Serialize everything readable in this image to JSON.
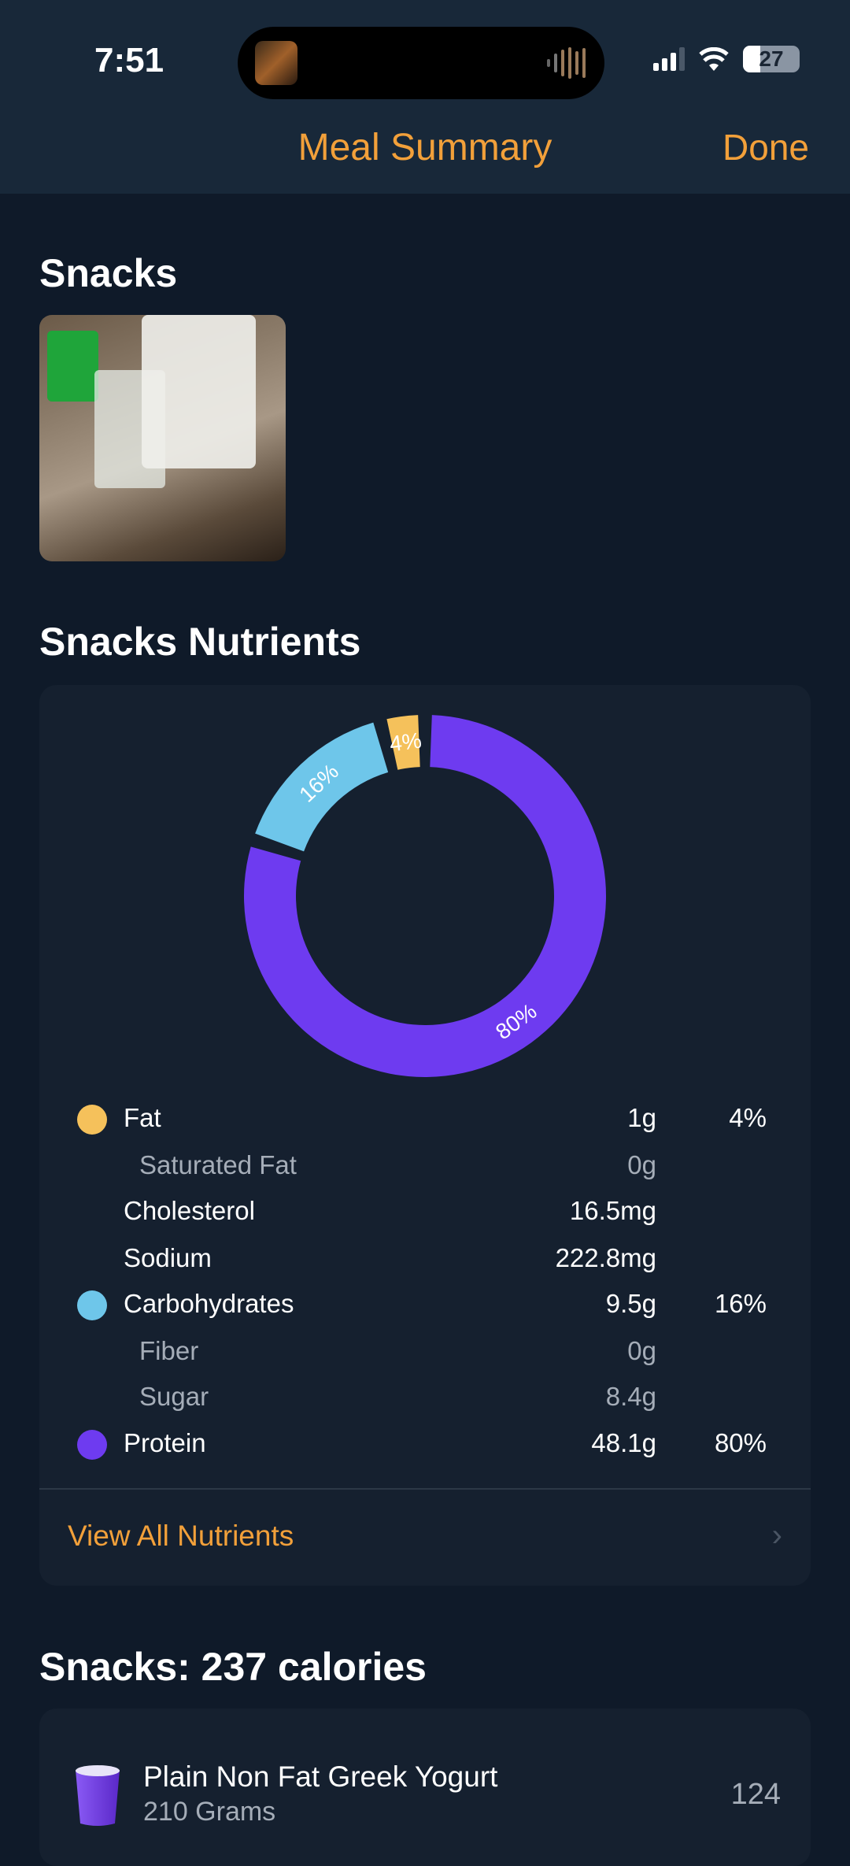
{
  "status_bar": {
    "time": "7:51",
    "battery": "27"
  },
  "nav": {
    "title": "Meal Summary",
    "done_label": "Done"
  },
  "meal": {
    "title": "Snacks"
  },
  "nutrients": {
    "title": "Snacks Nutrients",
    "chart_data": {
      "type": "pie",
      "variant": "donut",
      "slices": [
        {
          "label": "Protein",
          "value": 80,
          "data_label": "80%",
          "color": "#6e3bf0"
        },
        {
          "label": "Carbohydrates",
          "value": 16,
          "data_label": "16%",
          "color": "#6ec6ea"
        },
        {
          "label": "Fat",
          "value": 4,
          "data_label": "4%",
          "color": "#f5c15b"
        }
      ]
    },
    "rows": [
      {
        "name": "Fat",
        "amount": "1g",
        "percent": "4%",
        "color": "#f5c15b",
        "sub": false
      },
      {
        "name": "Saturated Fat",
        "amount": "0g",
        "percent": "",
        "sub": true
      },
      {
        "name": "Cholesterol",
        "amount": "16.5mg",
        "percent": "",
        "sub": false
      },
      {
        "name": "Sodium",
        "amount": "222.8mg",
        "percent": "",
        "sub": false
      },
      {
        "name": "Carbohydrates",
        "amount": "9.5g",
        "percent": "16%",
        "color": "#6ec6ea",
        "sub": false
      },
      {
        "name": "Fiber",
        "amount": "0g",
        "percent": "",
        "sub": true
      },
      {
        "name": "Sugar",
        "amount": "8.4g",
        "percent": "",
        "sub": true
      },
      {
        "name": "Protein",
        "amount": "48.1g",
        "percent": "80%",
        "color": "#6e3bf0",
        "sub": false
      }
    ],
    "view_all_label": "View All Nutrients"
  },
  "calories": {
    "title": "Snacks: 237 calories",
    "items": [
      {
        "name": "Plain Non Fat Greek Yogurt",
        "quantity": "210 Grams",
        "calories": "124",
        "icon": "yogurt-cup-icon"
      }
    ]
  }
}
